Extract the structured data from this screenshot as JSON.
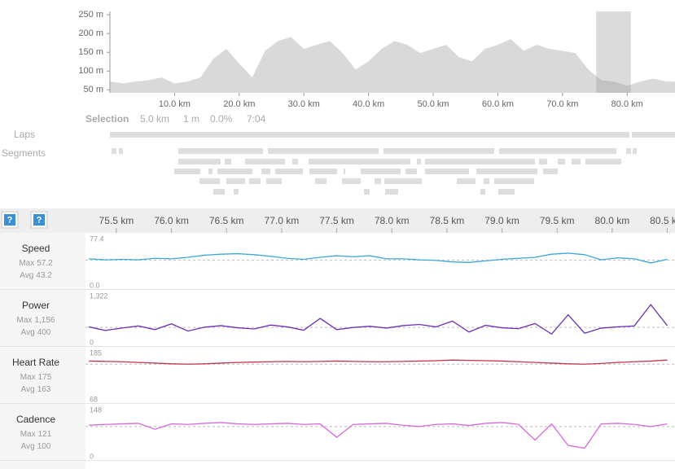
{
  "elevation": {
    "type": "area",
    "color": "#d9d9d9",
    "x": [
      0,
      2,
      4,
      6,
      8,
      10,
      12,
      14,
      16,
      18,
      20,
      22,
      24,
      26,
      28,
      30,
      32,
      34,
      36,
      38,
      40,
      42,
      44,
      46,
      48,
      50,
      52,
      54,
      56,
      58,
      60,
      62,
      64,
      66,
      68,
      70,
      72,
      74,
      76,
      78,
      80,
      82,
      84,
      86
    ],
    "values": [
      72,
      67,
      72,
      76,
      83,
      67,
      72,
      83,
      133,
      159,
      120,
      83,
      154,
      180,
      191,
      159,
      170,
      180,
      148,
      104,
      126,
      159,
      180,
      170,
      148,
      159,
      170,
      137,
      126,
      159,
      170,
      185,
      154,
      170,
      159,
      154,
      148,
      104,
      76,
      72,
      61,
      72,
      80,
      72
    ],
    "xlim": [
      0,
      87.4
    ],
    "ylim": [
      42,
      259
    ],
    "yticks": [
      {
        "value": 250,
        "label": "250 m"
      },
      {
        "value": 200,
        "label": "200 m"
      },
      {
        "value": 150,
        "label": "150 m"
      },
      {
        "value": 100,
        "label": "100 m"
      },
      {
        "value": 50,
        "label": "50 m"
      }
    ],
    "xticks": [
      {
        "value": 10,
        "label": "10.0 km"
      },
      {
        "value": 20,
        "label": "20.0 km"
      },
      {
        "value": 30,
        "label": "30.0 km"
      },
      {
        "value": 40,
        "label": "40.0 km"
      },
      {
        "value": 50,
        "label": "50.0 km"
      },
      {
        "value": 60,
        "label": "60.0 km"
      },
      {
        "value": 70,
        "label": "70.0 km"
      },
      {
        "value": 80,
        "label": "80.0 km"
      }
    ]
  },
  "selection": {
    "label": "Selection",
    "distance": "5.0 km",
    "elevation_gain": "1 m",
    "grade": "0.0%",
    "time": "7:04"
  },
  "laps": {
    "label": "Laps"
  },
  "segments": {
    "label": "Segments"
  },
  "toolbar": {
    "buttons": [
      "?",
      "?"
    ]
  },
  "detail": {
    "type": "line",
    "xlim": [
      75.22,
      80.57
    ],
    "xticks": [
      {
        "value": 75.5,
        "label": "75.5 km"
      },
      {
        "value": 76,
        "label": "76.0 km"
      },
      {
        "value": 76.5,
        "label": "76.5 km"
      },
      {
        "value": 77,
        "label": "77.0 km"
      },
      {
        "value": 77.5,
        "label": "77.5 km"
      },
      {
        "value": 78,
        "label": "78.0 km"
      },
      {
        "value": 78.5,
        "label": "78.5 km"
      },
      {
        "value": 79,
        "label": "79.0 km"
      },
      {
        "value": 79.5,
        "label": "79.5 km"
      },
      {
        "value": 80,
        "label": "80.0 km"
      },
      {
        "value": 80.5,
        "label": "80.5 km"
      }
    ],
    "x": [
      75.25,
      75.4,
      75.55,
      75.7,
      75.85,
      76.0,
      76.15,
      76.3,
      76.45,
      76.6,
      76.75,
      76.9,
      77.05,
      77.2,
      77.35,
      77.5,
      77.65,
      77.8,
      77.95,
      78.1,
      78.25,
      78.4,
      78.55,
      78.7,
      78.85,
      79.0,
      79.15,
      79.3,
      79.45,
      79.6,
      79.75,
      79.9,
      80.05,
      80.2,
      80.35,
      80.5
    ],
    "panels": [
      {
        "name": "Speed",
        "color": "#3aa7d6",
        "max_label": "Max",
        "max": 57.2,
        "avg_label": "Avg",
        "avg": 43.2,
        "ylim": [
          0,
          77.4
        ],
        "yticks": [
          77.4,
          {
            "value": 0,
            "label": "0.0"
          }
        ],
        "values": [
          46,
          44,
          45,
          44,
          47,
          46,
          49,
          53,
          55,
          56,
          54,
          51,
          47,
          45,
          49,
          52,
          50,
          52,
          46,
          46,
          44,
          43,
          40,
          39,
          42,
          45,
          47,
          49,
          55,
          57,
          54,
          44,
          48,
          46,
          38,
          45
        ]
      },
      {
        "name": "Power",
        "color": "#6b2fb6",
        "max_label": "Max",
        "max": {
          "value": 1156,
          "label": "1,156"
        },
        "avg_label": "Avg",
        "avg": 400,
        "ylim": [
          0,
          1322
        ],
        "yticks": [
          {
            "value": 1322,
            "label": "1,322"
          },
          0
        ],
        "values": [
          420,
          300,
          380,
          450,
          330,
          520,
          280,
          410,
          460,
          390,
          350,
          480,
          420,
          310,
          700,
          330,
          400,
          440,
          380,
          460,
          500,
          420,
          610,
          250,
          470,
          390,
          360,
          530,
          180,
          820,
          210,
          380,
          420,
          450,
          1156,
          460
        ]
      },
      {
        "name": "Heart Rate",
        "color": "#c2364b",
        "max_label": "Max",
        "max": 175,
        "avg_label": "Avg",
        "avg": 163,
        "ylim": [
          68,
          185
        ],
        "yticks": [
          185,
          68
        ],
        "values": [
          172,
          171,
          170,
          168,
          166,
          164,
          163,
          164,
          166,
          168,
          169,
          170,
          171,
          170,
          171,
          172,
          171,
          170,
          170,
          171,
          172,
          173,
          175,
          174,
          173,
          172,
          170,
          168,
          166,
          164,
          163,
          165,
          168,
          170,
          172,
          175
        ]
      },
      {
        "name": "Cadence",
        "color": "#d868d8",
        "max_label": "Max",
        "max": 121,
        "avg_label": "Avg",
        "avg": 100,
        "ylim": [
          0,
          148
        ],
        "yticks": [
          148,
          0
        ],
        "values": [
          105,
          108,
          110,
          112,
          90,
          110,
          108,
          112,
          115,
          110,
          108,
          110,
          112,
          108,
          110,
          60,
          108,
          110,
          112,
          105,
          100,
          108,
          110,
          104,
          112,
          115,
          108,
          50,
          110,
          30,
          20,
          110,
          112,
          108,
          100,
          110
        ]
      }
    ]
  }
}
